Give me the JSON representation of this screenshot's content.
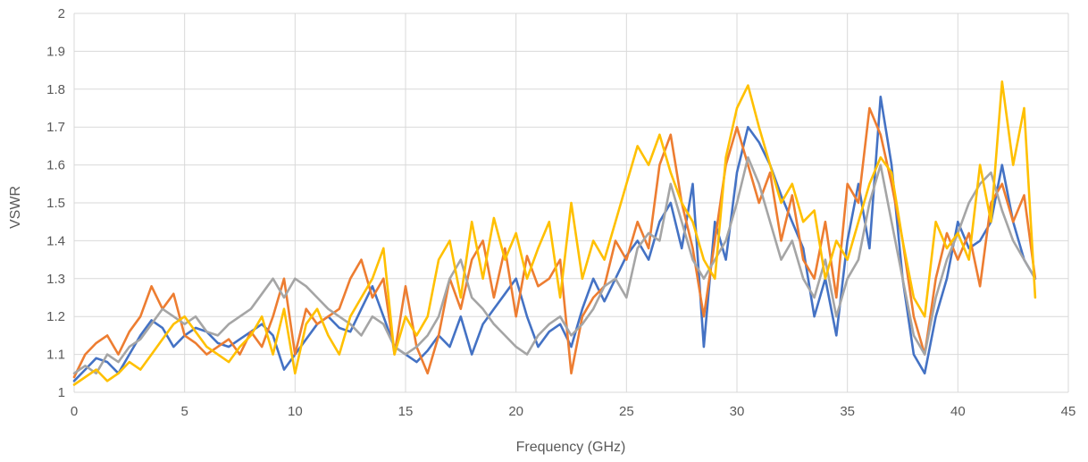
{
  "chart_data": {
    "type": "line",
    "title": "",
    "xlabel": "Frequency (GHz)",
    "ylabel": "VSWR",
    "xlim": [
      0,
      45
    ],
    "ylim": [
      1,
      2
    ],
    "xticks": [
      0,
      5,
      10,
      15,
      20,
      25,
      30,
      35,
      40,
      45
    ],
    "yticks": [
      1,
      1.1,
      1.2,
      1.3,
      1.4,
      1.5,
      1.6,
      1.7,
      1.8,
      1.9,
      2
    ],
    "grid": true,
    "legend": "none",
    "series": [
      {
        "color": "#4472C4",
        "x": [
          0,
          0.5,
          1,
          1.5,
          2,
          2.5,
          3,
          3.5,
          4,
          4.5,
          5,
          5.5,
          6,
          6.5,
          7,
          7.5,
          8,
          8.5,
          9,
          9.5,
          10,
          10.5,
          11,
          11.5,
          12,
          12.5,
          13,
          13.5,
          14,
          14.5,
          15,
          15.5,
          16,
          16.5,
          17,
          17.5,
          18,
          18.5,
          19,
          19.5,
          20,
          20.5,
          21,
          21.5,
          22,
          22.5,
          23,
          23.5,
          24,
          24.5,
          25,
          25.5,
          26,
          26.5,
          27,
          27.5,
          28,
          28.5,
          29,
          29.5,
          30,
          30.5,
          31,
          31.5,
          32,
          32.5,
          33,
          33.5,
          34,
          34.5,
          35,
          35.5,
          36,
          36.5,
          37,
          37.5,
          38,
          38.5,
          39,
          39.5,
          40,
          40.5,
          41,
          41.5,
          42,
          42.5,
          43,
          43.5
        ],
        "y": [
          1.03,
          1.06,
          1.09,
          1.08,
          1.05,
          1.1,
          1.15,
          1.19,
          1.17,
          1.12,
          1.15,
          1.17,
          1.16,
          1.13,
          1.12,
          1.14,
          1.16,
          1.18,
          1.15,
          1.06,
          1.1,
          1.14,
          1.18,
          1.2,
          1.17,
          1.16,
          1.22,
          1.28,
          1.2,
          1.12,
          1.1,
          1.08,
          1.11,
          1.15,
          1.12,
          1.2,
          1.1,
          1.18,
          1.22,
          1.26,
          1.3,
          1.2,
          1.12,
          1.16,
          1.18,
          1.12,
          1.22,
          1.3,
          1.24,
          1.3,
          1.36,
          1.4,
          1.35,
          1.45,
          1.5,
          1.38,
          1.55,
          1.12,
          1.45,
          1.35,
          1.58,
          1.7,
          1.66,
          1.6,
          1.52,
          1.45,
          1.38,
          1.2,
          1.3,
          1.15,
          1.4,
          1.55,
          1.38,
          1.78,
          1.6,
          1.3,
          1.1,
          1.05,
          1.2,
          1.3,
          1.45,
          1.38,
          1.4,
          1.45,
          1.6,
          1.45,
          1.35,
          1.3
        ]
      },
      {
        "color": "#ED7D31",
        "x": [
          0,
          0.5,
          1,
          1.5,
          2,
          2.5,
          3,
          3.5,
          4,
          4.5,
          5,
          5.5,
          6,
          6.5,
          7,
          7.5,
          8,
          8.5,
          9,
          9.5,
          10,
          10.5,
          11,
          11.5,
          12,
          12.5,
          13,
          13.5,
          14,
          14.5,
          15,
          15.5,
          16,
          16.5,
          17,
          17.5,
          18,
          18.5,
          19,
          19.5,
          20,
          20.5,
          21,
          21.5,
          22,
          22.5,
          23,
          23.5,
          24,
          24.5,
          25,
          25.5,
          26,
          26.5,
          27,
          27.5,
          28,
          28.5,
          29,
          29.5,
          30,
          30.5,
          31,
          31.5,
          32,
          32.5,
          33,
          33.5,
          34,
          34.5,
          35,
          35.5,
          36,
          36.5,
          37,
          37.5,
          38,
          38.5,
          39,
          39.5,
          40,
          40.5,
          41,
          41.5,
          42,
          42.5,
          43,
          43.5
        ],
        "y": [
          1.04,
          1.1,
          1.13,
          1.15,
          1.1,
          1.16,
          1.2,
          1.28,
          1.22,
          1.26,
          1.15,
          1.13,
          1.1,
          1.12,
          1.14,
          1.1,
          1.16,
          1.12,
          1.2,
          1.3,
          1.1,
          1.22,
          1.18,
          1.2,
          1.22,
          1.3,
          1.35,
          1.25,
          1.3,
          1.1,
          1.28,
          1.12,
          1.05,
          1.15,
          1.3,
          1.22,
          1.35,
          1.4,
          1.25,
          1.38,
          1.2,
          1.36,
          1.28,
          1.3,
          1.35,
          1.05,
          1.2,
          1.25,
          1.28,
          1.4,
          1.35,
          1.45,
          1.38,
          1.6,
          1.68,
          1.5,
          1.38,
          1.2,
          1.4,
          1.6,
          1.7,
          1.6,
          1.5,
          1.58,
          1.4,
          1.52,
          1.35,
          1.3,
          1.45,
          1.25,
          1.55,
          1.5,
          1.75,
          1.68,
          1.55,
          1.4,
          1.2,
          1.1,
          1.3,
          1.42,
          1.35,
          1.42,
          1.28,
          1.5,
          1.55,
          1.45,
          1.52,
          1.3
        ]
      },
      {
        "color": "#A5A5A5",
        "x": [
          0,
          0.5,
          1,
          1.5,
          2,
          2.5,
          3,
          3.5,
          4,
          4.5,
          5,
          5.5,
          6,
          6.5,
          7,
          7.5,
          8,
          8.5,
          9,
          9.5,
          10,
          10.5,
          11,
          11.5,
          12,
          12.5,
          13,
          13.5,
          14,
          14.5,
          15,
          15.5,
          16,
          16.5,
          17,
          17.5,
          18,
          18.5,
          19,
          19.5,
          20,
          20.5,
          21,
          21.5,
          22,
          22.5,
          23,
          23.5,
          24,
          24.5,
          25,
          25.5,
          26,
          26.5,
          27,
          27.5,
          28,
          28.5,
          29,
          29.5,
          30,
          30.5,
          31,
          31.5,
          32,
          32.5,
          33,
          33.5,
          34,
          34.5,
          35,
          35.5,
          36,
          36.5,
          37,
          37.5,
          38,
          38.5,
          39,
          39.5,
          40,
          40.5,
          41,
          41.5,
          42,
          42.5,
          43,
          43.5
        ],
        "y": [
          1.05,
          1.07,
          1.05,
          1.1,
          1.08,
          1.12,
          1.14,
          1.18,
          1.22,
          1.2,
          1.18,
          1.2,
          1.16,
          1.15,
          1.18,
          1.2,
          1.22,
          1.26,
          1.3,
          1.25,
          1.3,
          1.28,
          1.25,
          1.22,
          1.2,
          1.18,
          1.15,
          1.2,
          1.18,
          1.12,
          1.1,
          1.12,
          1.15,
          1.2,
          1.3,
          1.35,
          1.25,
          1.22,
          1.18,
          1.15,
          1.12,
          1.1,
          1.15,
          1.18,
          1.2,
          1.15,
          1.18,
          1.22,
          1.28,
          1.3,
          1.25,
          1.38,
          1.42,
          1.4,
          1.55,
          1.45,
          1.35,
          1.3,
          1.35,
          1.4,
          1.5,
          1.62,
          1.55,
          1.45,
          1.35,
          1.4,
          1.3,
          1.25,
          1.35,
          1.2,
          1.3,
          1.35,
          1.5,
          1.6,
          1.45,
          1.3,
          1.15,
          1.1,
          1.25,
          1.35,
          1.42,
          1.5,
          1.55,
          1.58,
          1.48,
          1.4,
          1.35,
          1.3
        ]
      },
      {
        "color": "#FFC000",
        "x": [
          0,
          0.5,
          1,
          1.5,
          2,
          2.5,
          3,
          3.5,
          4,
          4.5,
          5,
          5.5,
          6,
          6.5,
          7,
          7.5,
          8,
          8.5,
          9,
          9.5,
          10,
          10.5,
          11,
          11.5,
          12,
          12.5,
          13,
          13.5,
          14,
          14.5,
          15,
          15.5,
          16,
          16.5,
          17,
          17.5,
          18,
          18.5,
          19,
          19.5,
          20,
          20.5,
          21,
          21.5,
          22,
          22.5,
          23,
          23.5,
          24,
          24.5,
          25,
          25.5,
          26,
          26.5,
          27,
          27.5,
          28,
          28.5,
          29,
          29.5,
          30,
          30.5,
          31,
          31.5,
          32,
          32.5,
          33,
          33.5,
          34,
          34.5,
          35,
          35.5,
          36,
          36.5,
          37,
          37.5,
          38,
          38.5,
          39,
          39.5,
          40,
          40.5,
          41,
          41.5,
          42,
          42.5,
          43,
          43.5
        ],
        "y": [
          1.02,
          1.04,
          1.06,
          1.03,
          1.05,
          1.08,
          1.06,
          1.1,
          1.14,
          1.18,
          1.2,
          1.16,
          1.12,
          1.1,
          1.08,
          1.12,
          1.15,
          1.2,
          1.1,
          1.22,
          1.05,
          1.18,
          1.22,
          1.15,
          1.1,
          1.2,
          1.25,
          1.3,
          1.38,
          1.1,
          1.2,
          1.15,
          1.2,
          1.35,
          1.4,
          1.25,
          1.45,
          1.3,
          1.46,
          1.35,
          1.42,
          1.3,
          1.38,
          1.45,
          1.25,
          1.5,
          1.3,
          1.4,
          1.35,
          1.45,
          1.55,
          1.65,
          1.6,
          1.68,
          1.58,
          1.5,
          1.45,
          1.35,
          1.3,
          1.62,
          1.75,
          1.81,
          1.7,
          1.6,
          1.5,
          1.55,
          1.45,
          1.48,
          1.3,
          1.4,
          1.35,
          1.45,
          1.55,
          1.62,
          1.58,
          1.4,
          1.25,
          1.2,
          1.45,
          1.38,
          1.42,
          1.35,
          1.6,
          1.45,
          1.82,
          1.6,
          1.75,
          1.25
        ]
      }
    ]
  }
}
